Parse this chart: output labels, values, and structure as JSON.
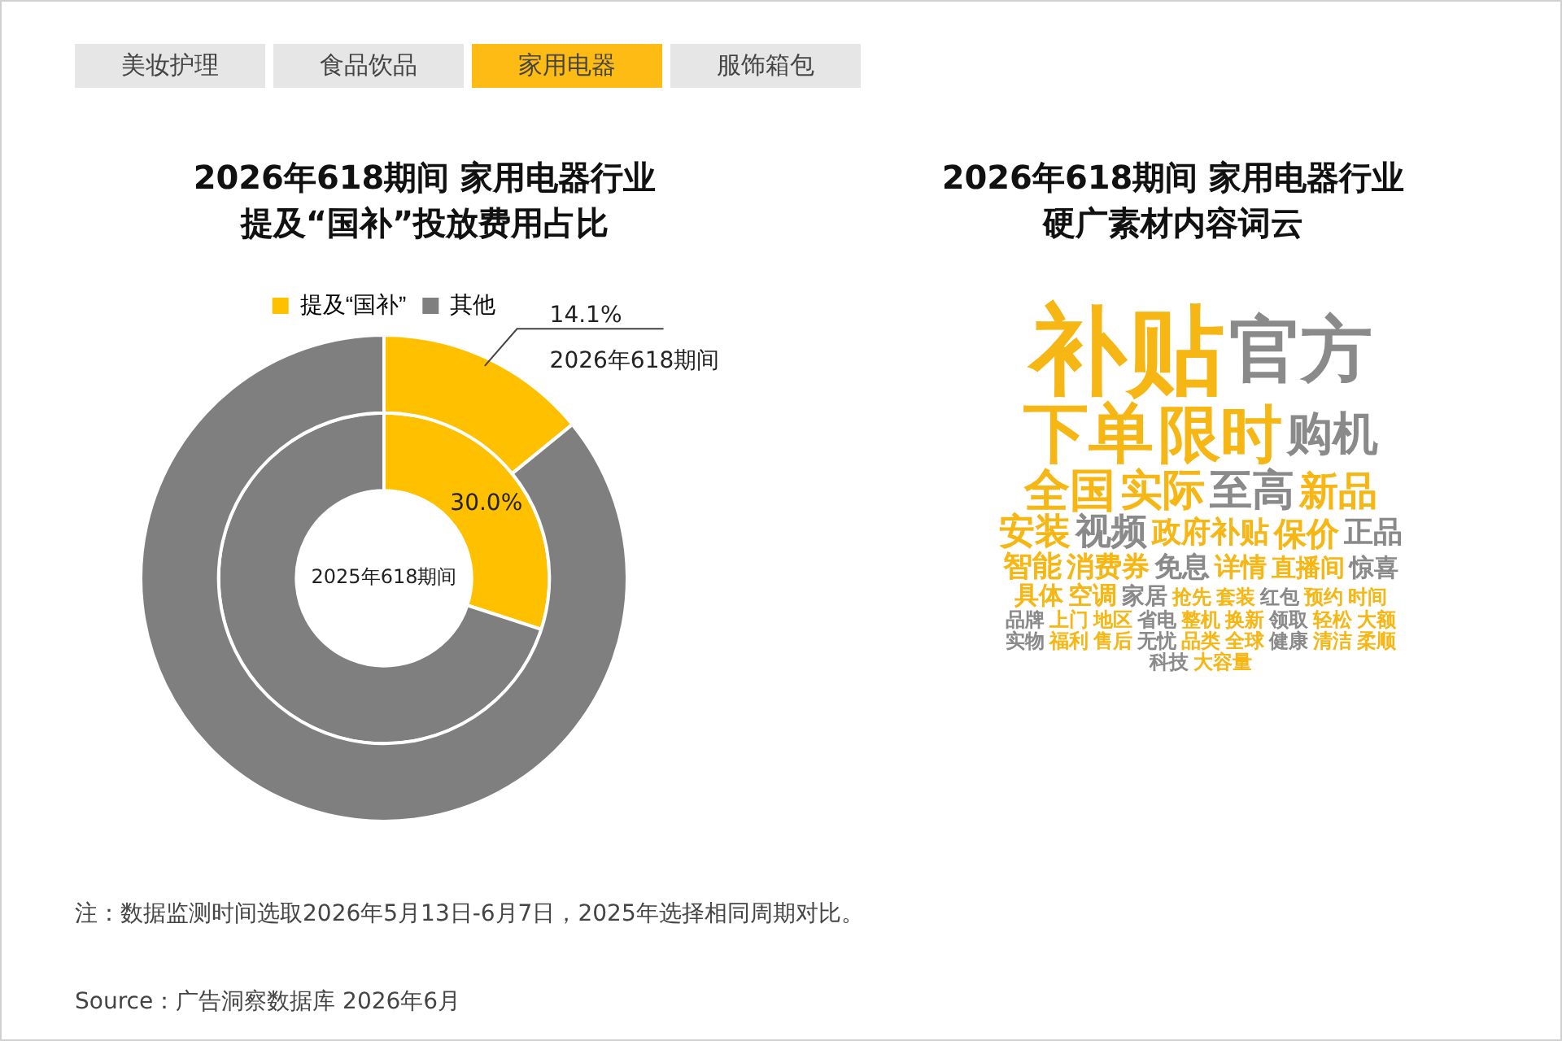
{
  "chart_data": [
    {
      "type": "other",
      "annotations": [
        "美妆护理",
        "食品饮品",
        "家用电器",
        "服饰箱包"
      ]
    },
    {
      "type": "donut",
      "title": "2026年618期间 家用电器行业提及“国补”投放费用占比",
      "categories": [
        "提及“国补”",
        "其他"
      ],
      "legend": "top",
      "series": [
        {
          "name": "2026年618期间",
          "values": [
            14.1,
            85.9
          ],
          "colors": [
            "#ffc000",
            "#7f7f7f"
          ],
          "value_labels": [
            "14.1%",
            null
          ]
        },
        {
          "name": "2025年618期间",
          "values": [
            30.0,
            70.0
          ],
          "colors": [
            "#ffc000",
            "#7f7f7f"
          ],
          "value_labels": [
            "30.0%",
            null
          ]
        }
      ],
      "annotations": [
        "注：数据监测时间选取2026年5月13日-6月7日，2025年选择相同周期对比。",
        "Source：广告洞察数据库 2026年6月"
      ]
    },
    {
      "type": "other",
      "title": "2026年618期间 家用电器行业硬广素材内容词云",
      "annotations": [
        "补贴",
        "官方",
        "下单",
        "限时",
        "购机",
        "全国",
        "实际",
        "至高",
        "新品",
        "安装",
        "视频",
        "政府补贴",
        "保价",
        "正品",
        "智能",
        "消费券",
        "免息",
        "详情",
        "直播间",
        "惊喜",
        "具体",
        "空调",
        "家居",
        "抢先",
        "套装",
        "红包",
        "预约",
        "时间",
        "品牌",
        "上门",
        "地区",
        "省电",
        "整机",
        "换新",
        "领取",
        "轻松",
        "大额",
        "实物",
        "福利",
        "售后",
        "无忧",
        "品类",
        "全球",
        "健康",
        "清洁",
        "柔顺",
        "科技",
        "大容量"
      ]
    }
  ]
}
